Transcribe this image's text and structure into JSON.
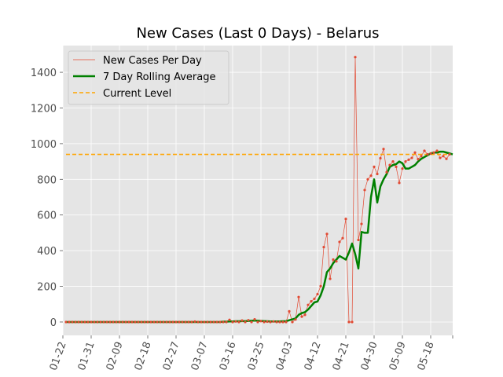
{
  "chart_data": {
    "type": "line",
    "title": "New Cases (Last 0 Days) - Belarus",
    "xlabel": "",
    "ylabel": "",
    "x_start": "2020-01-22",
    "x_tick_labels": [
      "01-22",
      "01-31",
      "02-09",
      "02-18",
      "02-27",
      "03-07",
      "03-16",
      "03-25",
      "04-03",
      "04-12",
      "04-21",
      "04-30",
      "05-09",
      "05-18"
    ],
    "xlim": [
      "2020-01-22",
      "2020-05-25"
    ],
    "ylim": [
      -75,
      1550
    ],
    "y_ticks": [
      0,
      200,
      400,
      600,
      800,
      1000,
      1200,
      1400
    ],
    "grid": true,
    "legend_position": "top-left",
    "colors": {
      "plot_background": "#e5e5e5",
      "grid": "#ffffff",
      "daily": "#e24a33",
      "rolling": "#008000",
      "current": "#ffa500"
    },
    "series": [
      {
        "name": "New Cases Per Day",
        "style": "thin line with dot markers",
        "values": [
          0,
          0,
          0,
          0,
          0,
          0,
          0,
          0,
          0,
          0,
          0,
          0,
          0,
          0,
          0,
          0,
          0,
          0,
          0,
          0,
          0,
          0,
          0,
          0,
          0,
          0,
          0,
          0,
          0,
          0,
          0,
          0,
          0,
          0,
          0,
          0,
          0,
          0,
          0,
          0,
          0,
          2,
          0,
          0,
          0,
          0,
          0,
          0,
          0,
          0,
          0,
          0,
          12,
          0,
          3,
          0,
          8,
          0,
          10,
          0,
          15,
          0,
          5,
          0,
          2,
          0,
          3,
          0,
          0,
          0,
          0,
          60,
          0,
          14,
          140,
          30,
          40,
          96,
          116,
          130,
          156,
          201,
          420,
          494,
          242,
          350,
          340,
          449,
          470,
          578,
          0,
          0,
          1485,
          460,
          550,
          740,
          800,
          820,
          870,
          830,
          918,
          970,
          840,
          880,
          900,
          870,
          780,
          860,
          900,
          910,
          920,
          950,
          913,
          930,
          960,
          940,
          945,
          950,
          960,
          920,
          930,
          915,
          940
        ]
      },
      {
        "name": "7 Day Rolling Average",
        "style": "thick line",
        "values": [
          0,
          0,
          0,
          0,
          0,
          0,
          0,
          0,
          0,
          0,
          0,
          0,
          0,
          0,
          0,
          0,
          0,
          0,
          0,
          0,
          0,
          0,
          0,
          0,
          0,
          0,
          0,
          0,
          0,
          0,
          0,
          0,
          0,
          0,
          0,
          0,
          0,
          0,
          0,
          0,
          0,
          0,
          0,
          0,
          0,
          0,
          0,
          0,
          0,
          0,
          2,
          2,
          3,
          3,
          4,
          4,
          5,
          5,
          6,
          7,
          8,
          7,
          6,
          5,
          4,
          3,
          3,
          3,
          3,
          4,
          4,
          10,
          15,
          20,
          40,
          50,
          55,
          70,
          90,
          110,
          115,
          150,
          200,
          280,
          300,
          330,
          350,
          370,
          360,
          350,
          390,
          440,
          380,
          300,
          505,
          500,
          500,
          700,
          800,
          670,
          760,
          800,
          830,
          870,
          880,
          885,
          900,
          890,
          860,
          860,
          870,
          880,
          900,
          915,
          925,
          935,
          945,
          950,
          950,
          955,
          955,
          950,
          945,
          940
        ]
      },
      {
        "name": "Current Level",
        "style": "dashed horizontal line",
        "value": 940
      }
    ]
  }
}
